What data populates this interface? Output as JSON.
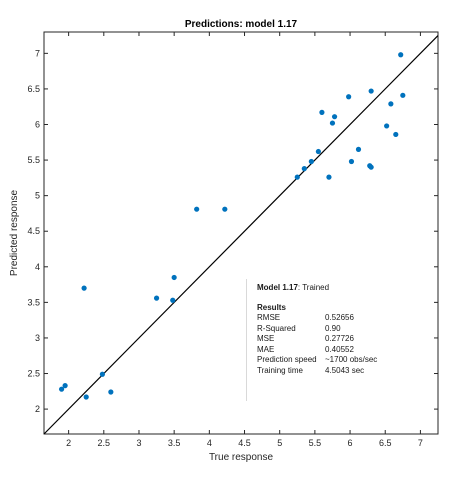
{
  "colors": {
    "points": "#0072BD",
    "line": "#000000",
    "axes": "#262626"
  },
  "chart_data": {
    "type": "scatter",
    "title": "Predictions: model 1.17",
    "xlabel": "True response",
    "ylabel": "Predicted response",
    "xlim": [
      1.65,
      7.25
    ],
    "ylim": [
      1.65,
      7.3
    ],
    "xticks": [
      "2",
      "2.5",
      "3",
      "3.5",
      "4",
      "4.5",
      "5",
      "5.5",
      "6",
      "6.5",
      "7"
    ],
    "yticks": [
      "2",
      "2.5",
      "3",
      "3.5",
      "4",
      "4.5",
      "5",
      "5.5",
      "6",
      "6.5",
      "7"
    ],
    "grid": false,
    "reference_line": "perfect prediction (y = x)",
    "points": [
      [
        1.9,
        2.28
      ],
      [
        1.95,
        2.33
      ],
      [
        2.22,
        3.7
      ],
      [
        2.25,
        2.17
      ],
      [
        2.48,
        2.49
      ],
      [
        2.6,
        2.24
      ],
      [
        3.25,
        3.56
      ],
      [
        3.48,
        3.53
      ],
      [
        3.5,
        3.85
      ],
      [
        3.82,
        4.81
      ],
      [
        4.22,
        4.81
      ],
      [
        5.25,
        5.26
      ],
      [
        5.35,
        5.38
      ],
      [
        5.45,
        5.48
      ],
      [
        5.55,
        5.62
      ],
      [
        5.6,
        6.17
      ],
      [
        5.7,
        5.26
      ],
      [
        5.75,
        6.02
      ],
      [
        5.78,
        6.11
      ],
      [
        5.98,
        6.39
      ],
      [
        6.02,
        5.48
      ],
      [
        6.12,
        5.65
      ],
      [
        6.28,
        5.42
      ],
      [
        6.3,
        5.4
      ],
      [
        6.3,
        6.47
      ],
      [
        6.52,
        5.98
      ],
      [
        6.58,
        6.29
      ],
      [
        6.65,
        5.86
      ],
      [
        6.72,
        6.98
      ],
      [
        6.75,
        6.41
      ]
    ]
  },
  "results": {
    "model_name": "Model 1.17",
    "model_status": ": Trained",
    "section_title": "Results",
    "rows": [
      {
        "key": "RMSE",
        "value": "0.52656"
      },
      {
        "key": "R-Squared",
        "value": "0.90"
      },
      {
        "key": "MSE",
        "value": "0.27726"
      },
      {
        "key": "MAE",
        "value": "0.40552"
      },
      {
        "key": "Prediction speed",
        "value": "~1700 obs/sec"
      },
      {
        "key": "Training time",
        "value": "4.5043 sec"
      }
    ]
  }
}
